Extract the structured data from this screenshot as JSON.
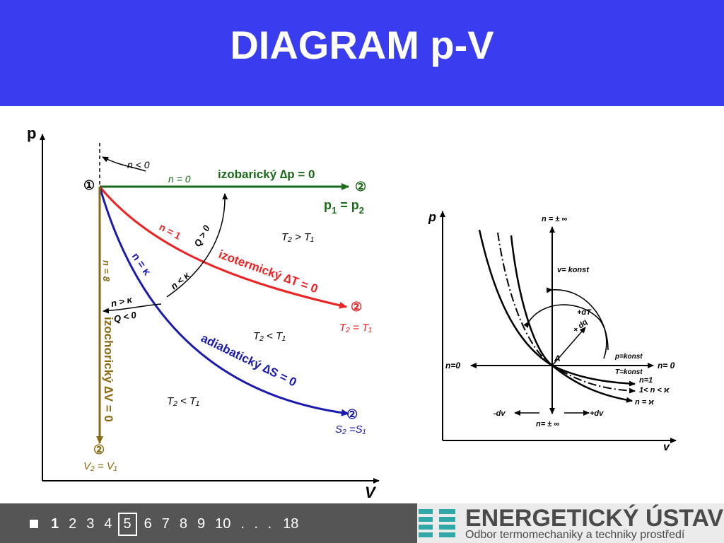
{
  "slide": {
    "title": "DIAGRAM p-V"
  },
  "left_diagram": {
    "axis_p": "p",
    "axis_v": "V",
    "point1": "①",
    "point2": "②",
    "n_lt_0": "n < 0",
    "n_eq_0": "n = 0",
    "isobaric": "izobarický ∆p = 0",
    "p1_eq_p2_a": "p",
    "p1_eq_p2_b": "1",
    "p1_eq_p2_c": " = p",
    "p1_eq_p2_d": "2",
    "n_eq_1": "n = 1",
    "q_gt_0": "Q > 0",
    "isothermal": "izotermický ∆T = 0",
    "t2_eq_t1": "T₂ = T₁",
    "n_eq_kappa": "n = κ",
    "n_lt_kappa": "n < κ",
    "n_gt_kappa": "n > κ",
    "q_lt_0": "Q < 0",
    "n_inf": "n = 8",
    "isochoric": "izochorický ∆V = 0",
    "v2_eq_v1": "V₂ = V₁",
    "adiabatic": "adiabatický ∆S = 0",
    "s2_eq_s1": "S₂ =S₁",
    "t2_gt_t1": "T₂ > T₁",
    "t2_lt_t1_a": "T₂ < T₁",
    "t2_lt_t1_b": "T₂ < T₁"
  },
  "right_diagram": {
    "axis_p": "p",
    "axis_v": "v",
    "n_pm_inf_top": "n = ± ∞",
    "v_konst": "v= konst",
    "plus_dT": "+dT",
    "plus_dq": "+ dq",
    "point_a": "A",
    "p_konst": "p=konst",
    "t_konst": "T=konst",
    "n_eq_0_left": "n=0",
    "n_eq_0_right": "n= 0",
    "n_eq_1": "n=1",
    "one_lt_n_lt_kappa": "1< n < ϰ",
    "n_eq_kappa": "n = ϰ",
    "minus_dv": "-dv",
    "plus_dv": "+dv",
    "n_pm_inf_bottom": "n= ± ∞"
  },
  "footer": {
    "pages": [
      "1",
      "2",
      "3",
      "4",
      "5",
      "6",
      "7",
      "8",
      "9",
      "10"
    ],
    "current_page": "1",
    "boxed_page": "5",
    "dots": ". . .",
    "last_page": "18",
    "logo_title": "ENERGETICKÝ ÚSTAV",
    "logo_subtitle": "Odbor termomechaniky a techniky prostředí"
  },
  "colors": {
    "header": "#3a3cf0",
    "isobaric": "#1a6a1a",
    "isothermal": "#ee2222",
    "adiabatic": "#1a1ab0",
    "isochoric": "#8a6a10",
    "footer_dark": "#555555",
    "logo_teal": "#2fa8a8"
  }
}
